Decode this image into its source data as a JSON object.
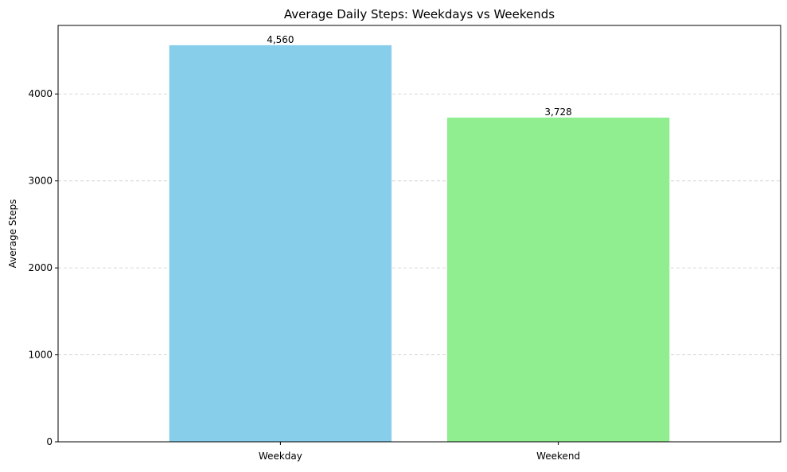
{
  "chart_data": {
    "type": "bar",
    "title": "Average Daily Steps: Weekdays vs Weekends",
    "xlabel": "",
    "ylabel": "Average Steps",
    "categories": [
      "Weekday",
      "Weekend"
    ],
    "values": [
      4560,
      3728
    ],
    "value_labels": [
      "4,560",
      "3,728"
    ],
    "colors": [
      "#87ceeb",
      "#90ee90"
    ],
    "ylim": [
      0,
      4788
    ],
    "yticks": [
      0,
      1000,
      2000,
      3000,
      4000
    ],
    "ytick_labels": [
      "0",
      "1000",
      "2000",
      "3000",
      "4000"
    ],
    "grid": {
      "axis": "y",
      "style": "dashed",
      "color": "#cccccc"
    }
  }
}
